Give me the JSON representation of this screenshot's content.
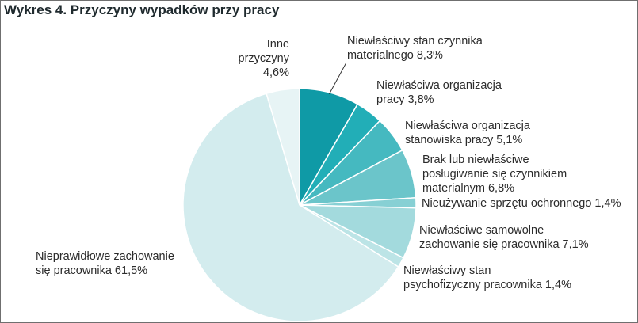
{
  "title": "Wykres 4. Przyczyny wypadków przy pracy",
  "chart_data": {
    "type": "pie",
    "title": "Wykres 4. Przyczyny wypadków przy pracy",
    "unit": "%",
    "slices": [
      {
        "label": "Niewłaściwy stan czynnika materialnego",
        "value": 8.3,
        "display": "8,3%",
        "color": "#0f9aa6",
        "label_lines": [
          "Niewłaściwy stan czynnika",
          "materialnego 8,3%"
        ]
      },
      {
        "label": "Niewłaściwa organizacja pracy",
        "value": 3.8,
        "display": "3,8%",
        "color": "#22aeb7",
        "label_lines": [
          "Niewłaściwa organizacja",
          "pracy 3,8%"
        ]
      },
      {
        "label": "Niewłaściwa organizacja stanowiska pracy",
        "value": 5.1,
        "display": "5,1%",
        "color": "#45b9c0",
        "label_lines": [
          "Niewłaściwa organizacja",
          "stanowiska pracy 5,1%"
        ]
      },
      {
        "label": "Brak lub niewłaściwe posługiwanie się czynnikiem materialnym",
        "value": 6.8,
        "display": "6,8%",
        "color": "#6bc5ca",
        "label_lines": [
          "Brak lub niewłaściwe",
          "posługiwanie się czynnikiem",
          "materialnym 6,8%"
        ]
      },
      {
        "label": "Nieużywanie sprzętu ochronnego",
        "value": 1.4,
        "display": "1,4%",
        "color": "#87d0d4",
        "label_lines": [
          "Nieużywanie sprzętu ochronnego 1,4%"
        ]
      },
      {
        "label": "Niewłaściwe samowolne zachowanie się pracownika",
        "value": 7.1,
        "display": "7,1%",
        "color": "#a3dadd",
        "label_lines": [
          "Niewłaściwe samowolne",
          "zachowanie się pracownika 7,1%"
        ]
      },
      {
        "label": "Niewłaściwy stan psychofizyczny pracownika",
        "value": 1.4,
        "display": "1,4%",
        "color": "#bce4e6",
        "label_lines": [
          "Niewłaściwy stan",
          "psychofizyczny pracownika 1,4%"
        ]
      },
      {
        "label": "Nieprawidłowe zachowanie się pracownika",
        "value": 61.5,
        "display": "61,5%",
        "color": "#d3ecee",
        "label_lines": [
          "Nieprawidłowe zachowanie",
          "się pracownika 61,5%"
        ]
      },
      {
        "label": "Inne przyczyny",
        "value": 4.6,
        "display": "4,6%",
        "color": "#e7f4f5",
        "label_lines": [
          "Inne",
          "przyczyny",
          "4,6%"
        ]
      }
    ]
  }
}
